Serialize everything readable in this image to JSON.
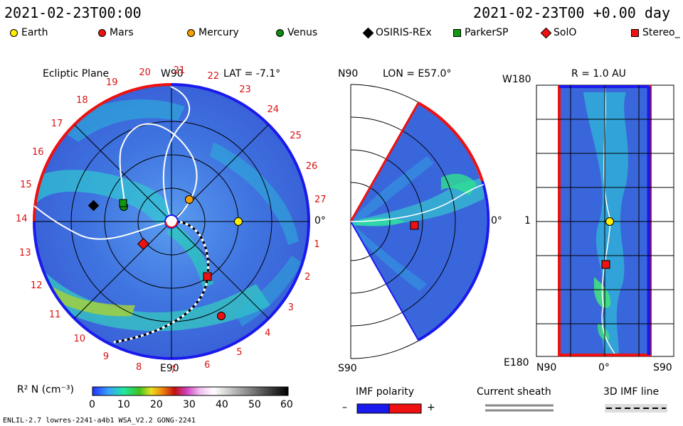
{
  "header": {
    "left_datetime": "2021-02-23T00:00",
    "right_datetime": "2021-02-23T00 +0.00 day"
  },
  "legend": [
    {
      "label": "Earth",
      "shape": "circle",
      "color": "#ffee00"
    },
    {
      "label": "Mars",
      "shape": "circle",
      "color": "#ee1111"
    },
    {
      "label": "Mercury",
      "shape": "circle",
      "color": "#f5a000"
    },
    {
      "label": "Venus",
      "shape": "circle",
      "color": "#118811"
    },
    {
      "label": "OSIRIS-REx",
      "shape": "diamond",
      "color": "#000000"
    },
    {
      "label": "ParkerSP",
      "shape": "square",
      "color": "#119911"
    },
    {
      "label": "SolO",
      "shape": "diamond",
      "color": "#ee1111"
    },
    {
      "label": "Stereo_",
      "shape": "square",
      "color": "#ee1111"
    }
  ],
  "panels": {
    "ecliptic": {
      "title": "Ecliptic Plane",
      "top_label": "W90",
      "bottom_label": "E90",
      "right_label": "0°",
      "lat_label": "LAT = -7.1°",
      "rotation_numbers": [
        "1",
        "2",
        "3",
        "4",
        "5",
        "6",
        "7",
        "8",
        "9",
        "10",
        "11",
        "12",
        "13",
        "14",
        "15",
        "16",
        "17",
        "18",
        "19",
        "20",
        "21",
        "22",
        "23",
        "24",
        "25",
        "26",
        "27"
      ]
    },
    "meridional": {
      "top_label": "N90",
      "bottom_label": "S90",
      "right_label": "0°",
      "lon_label": "LON = E57.0°"
    },
    "radial": {
      "title": "R = 1.0 AU",
      "top_left_label": "W180",
      "mid_left_label": "1",
      "bottom_left_label": "E180",
      "x_labels": [
        "N90",
        "0°",
        "S90"
      ]
    }
  },
  "colorbar": {
    "label": "R² N (cm⁻³)",
    "ticks": [
      "0",
      "10",
      "20",
      "30",
      "40",
      "50",
      "60"
    ]
  },
  "imf_polarity": {
    "title": "IMF polarity",
    "minus": "–",
    "plus": "+"
  },
  "current_sheath": {
    "title": "Current sheath"
  },
  "imf_line": {
    "title": "3D IMF line"
  },
  "footer": {
    "left": "ENLIL-2.7 lowres-2241-a4b1 WSA_V2.2 GONG-2241"
  },
  "colors": {
    "background_density": "#3a6ee8",
    "positive_polarity": "#ee1111",
    "negative_polarity": "#1111ee"
  },
  "chart_data": {
    "type": "heatmap",
    "title": "Ecliptic Plane",
    "colorbar_range": [
      0,
      60
    ],
    "colorbar_label": "R² N (cm⁻³)",
    "bodies": [
      {
        "name": "Earth",
        "panel": "ecliptic"
      },
      {
        "name": "Mars",
        "panel": "ecliptic"
      },
      {
        "name": "Mercury",
        "panel": "ecliptic"
      },
      {
        "name": "Venus",
        "panel": "ecliptic"
      },
      {
        "name": "OSIRIS-REx",
        "panel": "ecliptic"
      },
      {
        "name": "ParkerSP",
        "panel": "ecliptic"
      },
      {
        "name": "SolO",
        "panel": "ecliptic"
      },
      {
        "name": "Stereo_",
        "panel": "ecliptic"
      }
    ]
  }
}
